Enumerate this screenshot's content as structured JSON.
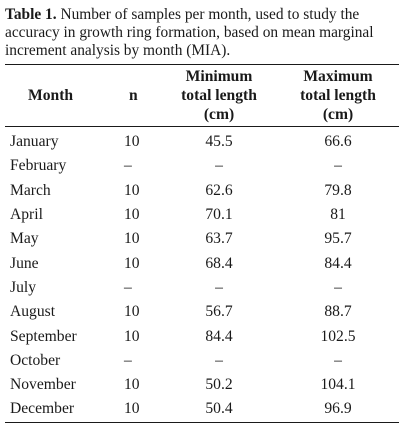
{
  "caption": {
    "label": "Table 1.",
    "text": " Number of samples per month, used to study the accuracy in growth ring formation, based on mean marginal increment analysis by month (MIA)."
  },
  "headers": {
    "month": "Month",
    "n": "n",
    "min": [
      "Minimum",
      "total length",
      "(cm)"
    ],
    "max": [
      "Maximum",
      "total length",
      "(cm)"
    ]
  },
  "rows": [
    {
      "month": "January",
      "n": "10",
      "min": "45.5",
      "max": "66.6"
    },
    {
      "month": "February",
      "n": "–",
      "min": "–",
      "max": "–"
    },
    {
      "month": "March",
      "n": "10",
      "min": "62.6",
      "max": "79.8"
    },
    {
      "month": "April",
      "n": "10",
      "min": "70.1",
      "max": "81"
    },
    {
      "month": "May",
      "n": "10",
      "min": "63.7",
      "max": "95.7"
    },
    {
      "month": "June",
      "n": "10",
      "min": "68.4",
      "max": "84.4"
    },
    {
      "month": "July",
      "n": "–",
      "min": "–",
      "max": "–"
    },
    {
      "month": "August",
      "n": "10",
      "min": "56.7",
      "max": "88.7"
    },
    {
      "month": "September",
      "n": "10",
      "min": "84.4",
      "max": "102.5"
    },
    {
      "month": "October",
      "n": "–",
      "min": "–",
      "max": "–"
    },
    {
      "month": "November",
      "n": "10",
      "min": "50.2",
      "max": "104.1"
    },
    {
      "month": "December",
      "n": "10",
      "min": "50.4",
      "max": "96.9"
    }
  ]
}
